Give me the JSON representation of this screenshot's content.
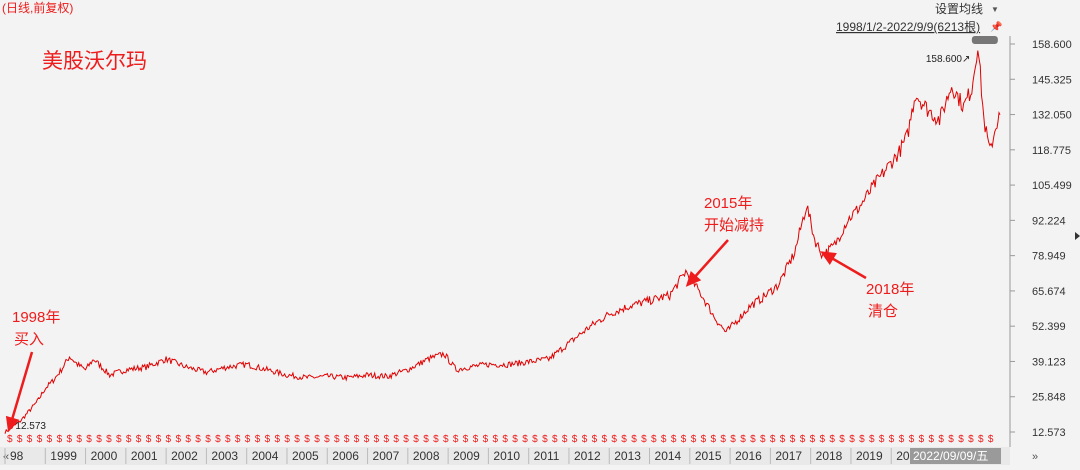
{
  "header": {
    "mode_label": "(日线,前复权)",
    "ma_settings_label": "设置均线",
    "dropdown_glyph": "▼",
    "range_label": "1998/1/2-2022/9/9(6213根)",
    "pin_glyph": "📌"
  },
  "colors": {
    "background": "#f3f3f3",
    "line": "#e00000",
    "annotation": "#ee1c1c",
    "axis_text": "#333333",
    "grid": "#cccccc",
    "footer_bg": "#e9e9e9",
    "selected_date_bg": "#9a9a9a"
  },
  "chart_data": {
    "type": "line",
    "title": "美股沃尔玛",
    "x_range": [
      1998.0,
      2022.7
    ],
    "ylim": [
      12.573,
      158.6
    ],
    "y_ticks": [
      "158.600",
      "145.325",
      "132.050",
      "118.775",
      "105.499",
      "92.224",
      "78.949",
      "65.674",
      "52.399",
      "39.123",
      "25.848",
      "12.573"
    ],
    "x_tick_labels": [
      {
        "year": 1998,
        "label": "98"
      },
      {
        "year": 1999,
        "label": "1999"
      },
      {
        "year": 2000,
        "label": "2000"
      },
      {
        "year": 2001,
        "label": "2001"
      },
      {
        "year": 2002,
        "label": "2002"
      },
      {
        "year": 2003,
        "label": "2003"
      },
      {
        "year": 2004,
        "label": "2004"
      },
      {
        "year": 2005,
        "label": "2005"
      },
      {
        "year": 2006,
        "label": "2006"
      },
      {
        "year": 2007,
        "label": "2007"
      },
      {
        "year": 2008,
        "label": "2008"
      },
      {
        "year": 2009,
        "label": "2009"
      },
      {
        "year": 2010,
        "label": "2010"
      },
      {
        "year": 2011,
        "label": "2011"
      },
      {
        "year": 2012,
        "label": "2012"
      },
      {
        "year": 2013,
        "label": "2013"
      },
      {
        "year": 2014,
        "label": "2014"
      },
      {
        "year": 2015,
        "label": "2015"
      },
      {
        "year": 2016,
        "label": "2016"
      },
      {
        "year": 2017,
        "label": "2017"
      },
      {
        "year": 2018,
        "label": "2018"
      },
      {
        "year": 2019,
        "label": "2019"
      },
      {
        "year": 2020,
        "label": "20"
      }
    ],
    "selected_date_label": "2022/09/09/五",
    "series": [
      {
        "x": [
          1998.0,
          1998.2,
          1998.4,
          1998.6,
          1998.8,
          1999.0,
          1999.2,
          1999.4,
          1999.6,
          1999.8,
          2000.0,
          2000.2,
          2000.4,
          2000.6,
          2000.8,
          2001.0,
          2001.5,
          2002.0,
          2002.5,
          2003.0,
          2003.5,
          2004.0,
          2004.5,
          2005.0,
          2005.5,
          2006.0,
          2006.5,
          2007.0,
          2007.5,
          2008.0,
          2008.5,
          2008.9,
          2009.2,
          2009.5,
          2010.0,
          2010.5,
          2011.0,
          2011.5,
          2012.0,
          2012.5,
          2013.0,
          2013.5,
          2014.0,
          2014.5,
          2014.9,
          2015.3,
          2015.6,
          2015.9,
          2016.2,
          2016.5,
          2016.8,
          2017.2,
          2017.6,
          2017.9,
          2018.1,
          2018.3,
          2018.6,
          2018.9,
          2019.2,
          2019.6,
          2019.9,
          2020.2,
          2020.4,
          2020.6,
          2020.9,
          2021.2,
          2021.5,
          2021.8,
          2022.0,
          2022.15,
          2022.3,
          2022.45,
          2022.6,
          2022.7
        ],
        "y": [
          12.573,
          14.5,
          17.0,
          20.5,
          24.0,
          29.0,
          32.0,
          36.0,
          41.0,
          38.0,
          36.0,
          40.0,
          37.0,
          34.0,
          35.0,
          36.0,
          37.0,
          40.0,
          37.0,
          35.0,
          37.0,
          38.0,
          36.0,
          34.0,
          33.0,
          33.5,
          33.0,
          34.0,
          33.5,
          36.0,
          40.0,
          42.0,
          36.0,
          37.0,
          38.0,
          38.0,
          39.0,
          40.0,
          46.0,
          52.0,
          57.0,
          60.0,
          62.0,
          64.0,
          73.0,
          64.0,
          56.0,
          50.0,
          55.0,
          60.0,
          63.0,
          68.0,
          80.0,
          98.0,
          85.0,
          79.0,
          83.0,
          92.0,
          97.0,
          106.0,
          112.0,
          118.0,
          124.0,
          140.0,
          134.0,
          130.0,
          143.0,
          135.0,
          142.0,
          158.6,
          130.0,
          118.0,
          128.0,
          132.0
        ]
      }
    ],
    "max_marker": {
      "x": 2022.15,
      "y": 158.6,
      "label": "158.600↗"
    },
    "min_marker": {
      "x": 1998.0,
      "y": 12.573,
      "label": "↙12.573"
    },
    "annotations": [
      {
        "lines": [
          "1998年",
          "买入"
        ],
        "arrow_to": {
          "x": 1998.1,
          "y": 13.5
        }
      },
      {
        "lines": [
          "2015年",
          "开始减持"
        ],
        "arrow_to": {
          "x": 2014.95,
          "y": 68.0
        }
      },
      {
        "lines": [
          "2018年",
          "清仓"
        ],
        "arrow_to": {
          "x": 2018.3,
          "y": 80.0
        }
      }
    ],
    "dividend_marker": "$",
    "dividend_marker_count": 100
  },
  "footer": {
    "left_arrow": "«",
    "right_arrow": "»"
  }
}
